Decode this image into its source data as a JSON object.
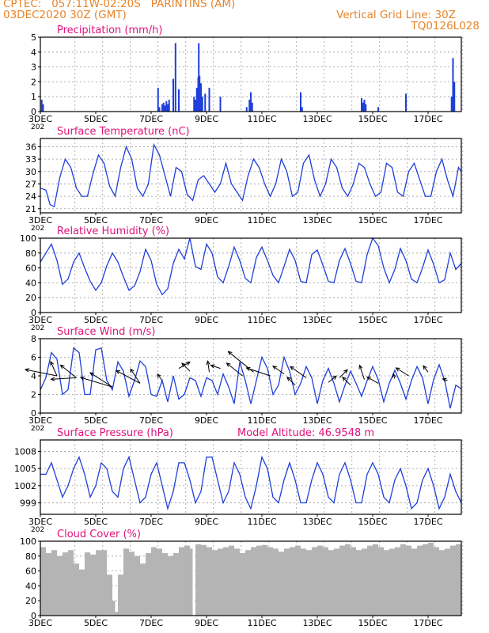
{
  "header": {
    "line1_left": "CPTEC:   057:11W-02:20S   PARINTINS (AM)",
    "line2_left": "03DEC2020 30Z (GMT)",
    "line2_right": "Vertical Grid Line: 30Z",
    "line3_right": "TQ0126L028"
  },
  "colors": {
    "header": "#e8842a",
    "title": "#e0127a",
    "series": "#1f3fd9",
    "cloud": "#b4b4b4"
  },
  "x_axis": {
    "tick_labels": [
      "3DEC",
      "5DEC",
      "7DEC",
      "9DEC",
      "11DEC",
      "13DEC",
      "15DEC",
      "17DEC"
    ],
    "year_fragment": "202"
  },
  "chart_data": [
    {
      "id": "precip",
      "type": "bar",
      "title": "Precipitation (mm/h)",
      "ylim": [
        0,
        5
      ],
      "yticks": [
        "0",
        "1",
        "2",
        "3",
        "4",
        "5"
      ],
      "days": [
        3,
        18.2
      ],
      "values": [
        [
          3.05,
          0.8
        ],
        [
          3.1,
          0.5
        ],
        [
          7.25,
          1.6
        ],
        [
          7.3,
          0.3
        ],
        [
          7.4,
          0.5
        ],
        [
          7.45,
          0.6
        ],
        [
          7.5,
          0.4
        ],
        [
          7.55,
          0.7
        ],
        [
          7.6,
          0.5
        ],
        [
          7.65,
          0.8
        ],
        [
          7.8,
          2.2
        ],
        [
          7.88,
          4.6
        ],
        [
          8.0,
          1.5
        ],
        [
          8.55,
          1.0
        ],
        [
          8.6,
          0.8
        ],
        [
          8.65,
          1.6
        ],
        [
          8.7,
          2.3
        ],
        [
          8.72,
          4.6
        ],
        [
          8.75,
          2.4
        ],
        [
          8.8,
          1.9
        ],
        [
          8.85,
          1.0
        ],
        [
          8.95,
          1.2
        ],
        [
          9.1,
          1.6
        ],
        [
          9.5,
          1.0
        ],
        [
          10.45,
          0.3
        ],
        [
          10.55,
          0.8
        ],
        [
          10.6,
          1.3
        ],
        [
          10.65,
          0.6
        ],
        [
          12.4,
          1.3
        ],
        [
          12.45,
          0.3
        ],
        [
          14.6,
          0.9
        ],
        [
          14.65,
          0.6
        ],
        [
          14.7,
          0.8
        ],
        [
          14.75,
          0.5
        ],
        [
          15.2,
          0.3
        ],
        [
          16.2,
          1.2
        ],
        [
          17.85,
          1.0
        ],
        [
          17.9,
          3.6
        ],
        [
          17.95,
          2.0
        ]
      ]
    },
    {
      "id": "temp",
      "type": "line",
      "title": "Surface Temperature (nC)",
      "ylim": [
        20,
        38
      ],
      "yticks": [
        "21",
        "24",
        "27",
        "30",
        "33",
        "36"
      ],
      "x": [
        3.0,
        3.2,
        3.35,
        3.5,
        3.7,
        3.9,
        4.1,
        4.3,
        4.5,
        4.7,
        4.9,
        5.1,
        5.3,
        5.5,
        5.7,
        5.9,
        6.1,
        6.3,
        6.5,
        6.7,
        6.9,
        7.1,
        7.3,
        7.5,
        7.7,
        7.9,
        8.1,
        8.3,
        8.5,
        8.7,
        8.9,
        9.1,
        9.3,
        9.5,
        9.7,
        9.9,
        10.1,
        10.3,
        10.5,
        10.7,
        10.9,
        11.1,
        11.3,
        11.5,
        11.7,
        11.9,
        12.1,
        12.3,
        12.5,
        12.7,
        12.9,
        13.1,
        13.3,
        13.5,
        13.7,
        13.9,
        14.1,
        14.3,
        14.5,
        14.7,
        14.9,
        15.1,
        15.3,
        15.5,
        15.7,
        15.9,
        16.1,
        16.3,
        16.5,
        16.7,
        16.9,
        17.1,
        17.3,
        17.5,
        17.7,
        17.9,
        18.1,
        18.2
      ],
      "values": [
        26,
        25.5,
        22,
        21.5,
        28.5,
        33,
        31,
        26,
        24,
        24,
        29.5,
        34,
        32,
        26.5,
        24,
        31,
        36,
        33,
        26,
        24,
        27,
        36.5,
        34,
        29,
        24,
        31,
        30,
        24.5,
        23,
        28,
        29,
        27,
        25,
        27,
        32,
        27,
        25,
        23,
        29,
        33,
        31,
        27,
        24,
        27,
        33,
        30,
        24,
        25,
        32,
        34,
        28,
        24,
        27,
        33,
        31,
        26,
        24,
        27,
        32,
        31,
        27,
        24,
        25,
        32,
        31,
        25,
        24,
        30,
        32,
        28,
        24,
        24,
        30,
        33,
        28,
        24,
        31,
        30
      ]
    },
    {
      "id": "rh",
      "type": "line",
      "title": "Relative Humidity (%)",
      "ylim": [
        0,
        100
      ],
      "yticks": [
        "0",
        "20",
        "40",
        "60",
        "80",
        "100"
      ],
      "x": [
        3.0,
        3.2,
        3.4,
        3.6,
        3.8,
        4.0,
        4.2,
        4.4,
        4.6,
        4.8,
        5.0,
        5.2,
        5.4,
        5.6,
        5.8,
        6.0,
        6.2,
        6.4,
        6.6,
        6.8,
        7.0,
        7.2,
        7.4,
        7.6,
        7.8,
        8.0,
        8.2,
        8.4,
        8.6,
        8.8,
        9.0,
        9.2,
        9.4,
        9.6,
        9.8,
        10.0,
        10.2,
        10.4,
        10.6,
        10.8,
        11.0,
        11.2,
        11.4,
        11.6,
        11.8,
        12.0,
        12.2,
        12.4,
        12.6,
        12.8,
        13.0,
        13.2,
        13.4,
        13.6,
        13.8,
        14.0,
        14.2,
        14.4,
        14.6,
        14.8,
        15.0,
        15.2,
        15.4,
        15.6,
        15.8,
        16.0,
        16.2,
        16.4,
        16.6,
        16.8,
        17.0,
        17.2,
        17.4,
        17.6,
        17.8,
        18.0,
        18.2
      ],
      "values": [
        68,
        80,
        92,
        70,
        38,
        45,
        68,
        80,
        60,
        42,
        30,
        40,
        63,
        80,
        68,
        48,
        30,
        36,
        55,
        85,
        70,
        38,
        24,
        32,
        66,
        85,
        72,
        100,
        62,
        58,
        92,
        80,
        48,
        40,
        62,
        88,
        70,
        46,
        40,
        74,
        88,
        70,
        50,
        40,
        62,
        85,
        70,
        42,
        40,
        78,
        84,
        64,
        42,
        40,
        70,
        86,
        66,
        42,
        40,
        78,
        100,
        90,
        60,
        40,
        58,
        86,
        70,
        45,
        40,
        60,
        84,
        65,
        40,
        44,
        80,
        58,
        66
      ]
    },
    {
      "id": "wind",
      "type": "line",
      "title": "Surface Wind (m/s)",
      "ylim": [
        0,
        8
      ],
      "yticks": [
        "0",
        "2",
        "4",
        "6",
        "8"
      ],
      "x": [
        3.0,
        3.2,
        3.4,
        3.6,
        3.8,
        4.0,
        4.2,
        4.4,
        4.6,
        4.8,
        5.0,
        5.2,
        5.4,
        5.6,
        5.8,
        6.0,
        6.2,
        6.4,
        6.6,
        6.8,
        7.0,
        7.2,
        7.4,
        7.6,
        7.8,
        8.0,
        8.2,
        8.4,
        8.6,
        8.8,
        9.0,
        9.2,
        9.4,
        9.6,
        9.8,
        10.0,
        10.2,
        10.4,
        10.6,
        10.8,
        11.0,
        11.2,
        11.4,
        11.6,
        11.8,
        12.0,
        12.2,
        12.4,
        12.6,
        12.8,
        13.0,
        13.2,
        13.4,
        13.6,
        13.8,
        14.0,
        14.2,
        14.4,
        14.6,
        14.8,
        15.0,
        15.2,
        15.4,
        15.6,
        15.8,
        16.0,
        16.2,
        16.4,
        16.6,
        16.8,
        17.0,
        17.2,
        17.4,
        17.6,
        17.8,
        18.0,
        18.2
      ],
      "values": [
        2.5,
        3.8,
        6.5,
        5.8,
        2.0,
        2.5,
        7.0,
        6.5,
        2.0,
        2.0,
        6.8,
        7.0,
        3.5,
        2.5,
        5.5,
        4.5,
        1.8,
        3.5,
        5.6,
        5.0,
        2.0,
        1.8,
        3.5,
        1.2,
        4.0,
        1.5,
        2.0,
        3.8,
        3.5,
        1.8,
        3.8,
        3.5,
        2.0,
        4.2,
        2.8,
        1.0,
        5.5,
        3.5,
        1.0,
        3.5,
        6.0,
        4.8,
        2.0,
        3.0,
        6.0,
        4.5,
        2.0,
        3.2,
        5.0,
        3.8,
        1.0,
        3.5,
        4.8,
        3.2,
        1.2,
        3.0,
        4.5,
        3.2,
        1.8,
        3.5,
        5.0,
        3.6,
        1.2,
        3.2,
        4.6,
        3.2,
        1.5,
        3.5,
        5.0,
        3.8,
        1.0,
        3.6,
        5.2,
        3.5,
        0.5,
        3.0,
        2.6
      ],
      "arrows": [
        [
          3.6,
          4.0,
          -40,
          -8
        ],
        [
          3.6,
          4.0,
          -8,
          -18
        ],
        [
          4.3,
          3.8,
          -32,
          2
        ],
        [
          4.3,
          3.8,
          -20,
          -16
        ],
        [
          5.6,
          2.8,
          -40,
          -12
        ],
        [
          5.6,
          2.8,
          -28,
          -18
        ],
        [
          6.6,
          3.2,
          -30,
          -16
        ],
        [
          6.6,
          3.2,
          -12,
          -18
        ],
        [
          7.4,
          3.5,
          -6,
          -8
        ],
        [
          8.0,
          4.8,
          14,
          -8
        ],
        [
          8.4,
          4.5,
          -10,
          -10
        ],
        [
          9.1,
          4.4,
          -2,
          -14
        ],
        [
          9.5,
          4.8,
          -12,
          -4
        ],
        [
          10.3,
          4.0,
          -20,
          -16
        ],
        [
          10.7,
          4.4,
          -32,
          -26
        ],
        [
          11.3,
          4.0,
          -30,
          -10
        ],
        [
          11.8,
          4.2,
          -14,
          -10
        ],
        [
          12.2,
          3.0,
          -10,
          -10
        ],
        [
          12.6,
          3.8,
          -20,
          -14
        ],
        [
          13.4,
          3.3,
          10,
          -8
        ],
        [
          13.8,
          3.8,
          10,
          -10
        ],
        [
          14.2,
          3.0,
          -10,
          -10
        ],
        [
          14.7,
          3.6,
          -6,
          -18
        ],
        [
          15.2,
          3.2,
          -14,
          -8
        ],
        [
          15.8,
          3.7,
          -2,
          -6
        ],
        [
          16.3,
          4.0,
          -16,
          -10
        ],
        [
          17.0,
          4.4,
          -6,
          -8
        ],
        [
          17.7,
          3.5,
          -6,
          -2
        ]
      ]
    },
    {
      "id": "pres",
      "type": "line",
      "title": "Surface Pressure (hPa)",
      "note": "Model Altitude: 46.9548 m",
      "ylim": [
        997,
        1010
      ],
      "yticks": [
        "999",
        "1002",
        "1005",
        "1008"
      ],
      "x": [
        3.0,
        3.2,
        3.4,
        3.6,
        3.8,
        4.0,
        4.2,
        4.4,
        4.6,
        4.8,
        5.0,
        5.2,
        5.4,
        5.6,
        5.8,
        6.0,
        6.2,
        6.4,
        6.6,
        6.8,
        7.0,
        7.2,
        7.4,
        7.6,
        7.8,
        8.0,
        8.2,
        8.4,
        8.6,
        8.8,
        9.0,
        9.2,
        9.4,
        9.6,
        9.8,
        10.0,
        10.2,
        10.4,
        10.6,
        10.8,
        11.0,
        11.2,
        11.4,
        11.6,
        11.8,
        12.0,
        12.2,
        12.4,
        12.6,
        12.8,
        13.0,
        13.2,
        13.4,
        13.6,
        13.8,
        14.0,
        14.2,
        14.4,
        14.6,
        14.8,
        15.0,
        15.2,
        15.4,
        15.6,
        15.8,
        16.0,
        16.2,
        16.4,
        16.6,
        16.8,
        17.0,
        17.2,
        17.4,
        17.6,
        17.8,
        18.0,
        18.2
      ],
      "values": [
        1004,
        1004,
        1006,
        1003,
        1000,
        1002,
        1005,
        1007,
        1004,
        1000,
        1002,
        1006,
        1005,
        1001,
        1000,
        1005,
        1007,
        1003,
        999,
        1000,
        1004,
        1006,
        1002,
        998,
        1001,
        1006,
        1006,
        1003,
        999,
        1001,
        1007,
        1007,
        1003,
        999,
        1001,
        1006,
        1004,
        1000,
        998,
        1002,
        1007,
        1005,
        1000,
        999,
        1003,
        1006,
        1003,
        999,
        999,
        1003,
        1006,
        1004,
        1000,
        999,
        1004,
        1006,
        1003,
        999,
        999,
        1004,
        1006,
        1004,
        1000,
        999,
        1003,
        1005,
        1002,
        998,
        999,
        1003,
        1005,
        1002,
        998,
        1000,
        1004,
        1001,
        999
      ]
    },
    {
      "id": "cloud",
      "type": "area",
      "title": "Cloud Cover (%)",
      "ylim": [
        0,
        100
      ],
      "yticks": [
        "0",
        "20",
        "40",
        "60",
        "80",
        "100"
      ],
      "x": [
        3.0,
        3.2,
        3.4,
        3.6,
        3.8,
        4.0,
        4.2,
        4.4,
        4.6,
        4.8,
        5.0,
        5.2,
        5.4,
        5.6,
        5.7,
        5.8,
        6.0,
        6.2,
        6.4,
        6.6,
        6.8,
        7.0,
        7.2,
        7.4,
        7.6,
        7.8,
        8.0,
        8.2,
        8.4,
        8.5,
        8.6,
        8.8,
        9.0,
        9.2,
        9.4,
        9.6,
        9.8,
        10.0,
        10.2,
        10.4,
        10.6,
        10.8,
        11.0,
        11.2,
        11.4,
        11.6,
        11.8,
        12.0,
        12.2,
        12.4,
        12.6,
        12.8,
        13.0,
        13.2,
        13.4,
        13.6,
        13.8,
        14.0,
        14.2,
        14.4,
        14.6,
        14.8,
        15.0,
        15.2,
        15.4,
        15.6,
        15.8,
        16.0,
        16.2,
        16.4,
        16.6,
        16.8,
        17.0,
        17.2,
        17.4,
        17.6,
        17.8,
        18.0,
        18.2
      ],
      "values": [
        92,
        84,
        88,
        80,
        85,
        88,
        70,
        62,
        85,
        82,
        88,
        88,
        55,
        20,
        5,
        55,
        90,
        86,
        80,
        70,
        84,
        92,
        90,
        84,
        80,
        84,
        92,
        94,
        90,
        0,
        96,
        95,
        92,
        88,
        90,
        92,
        94,
        90,
        84,
        88,
        92,
        94,
        95,
        92,
        90,
        86,
        90,
        92,
        94,
        90,
        88,
        92,
        94,
        92,
        88,
        90,
        94,
        96,
        92,
        88,
        90,
        94,
        96,
        92,
        88,
        90,
        92,
        96,
        94,
        90,
        94,
        96,
        98,
        92,
        88,
        90,
        94,
        96,
        92
      ]
    }
  ]
}
